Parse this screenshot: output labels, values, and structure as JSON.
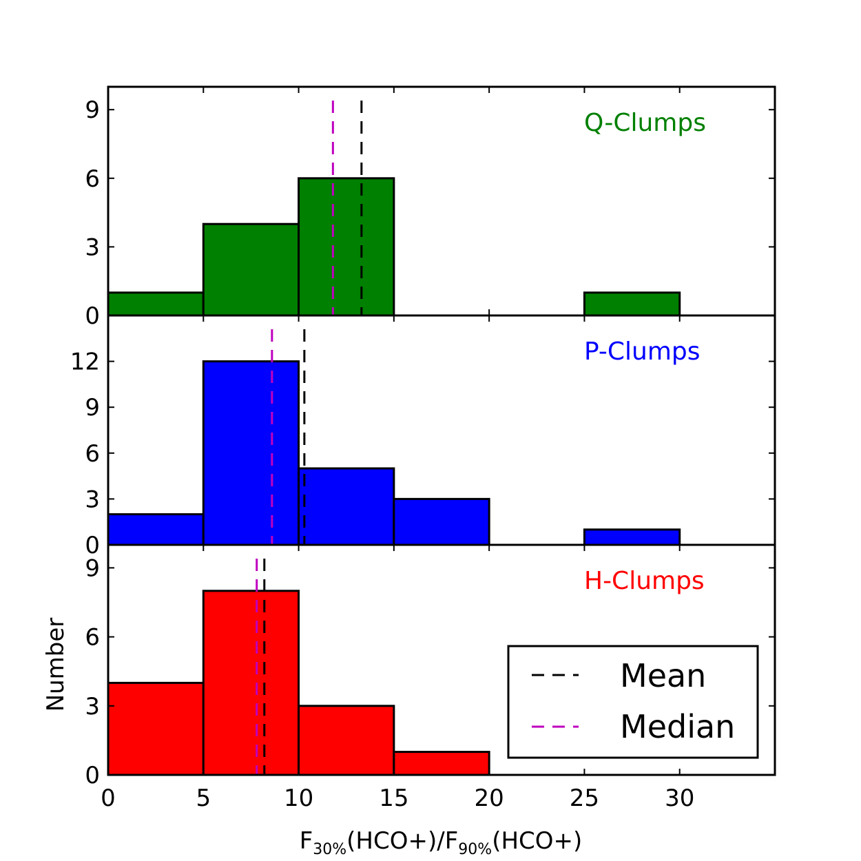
{
  "chart_data": {
    "type": "histogram",
    "bin_edges": [
      0,
      5,
      10,
      15,
      20,
      25,
      30
    ],
    "xlim": [
      0,
      35
    ],
    "xticks": [
      0,
      5,
      10,
      15,
      20,
      25,
      30
    ],
    "xlabel": {
      "main": "F",
      "sub1": "30%",
      "mid": "(HCO+)/F",
      "sub2": "90%",
      "tail": "(HCO+)"
    },
    "ylabel": "Number",
    "panels": [
      {
        "name": "Q-Clumps",
        "color": "#008000",
        "counts": [
          1,
          4,
          6,
          0,
          0,
          1
        ],
        "ylim": [
          0,
          10
        ],
        "yticks": [
          0,
          3,
          6,
          9
        ],
        "mean": 13.3,
        "median": 11.8
      },
      {
        "name": "P-Clumps",
        "color": "#0000ff",
        "counts": [
          2,
          12,
          5,
          3,
          0,
          1
        ],
        "ylim": [
          0,
          15
        ],
        "yticks": [
          0,
          3,
          6,
          9,
          12
        ],
        "mean": 10.3,
        "median": 8.6
      },
      {
        "name": "H-Clumps",
        "color": "#ff0000",
        "counts": [
          4,
          8,
          3,
          1,
          0,
          0
        ],
        "ylim": [
          0,
          10
        ],
        "yticks": [
          0,
          3,
          6,
          9
        ],
        "mean": 8.2,
        "median": 7.8
      }
    ],
    "legend": {
      "placement": "lower-right of bottom panel",
      "entries": [
        {
          "label": "Mean",
          "color": "#000000",
          "style": "dashed"
        },
        {
          "label": "Median",
          "color": "#bf00bf",
          "style": "dashed"
        }
      ]
    }
  }
}
